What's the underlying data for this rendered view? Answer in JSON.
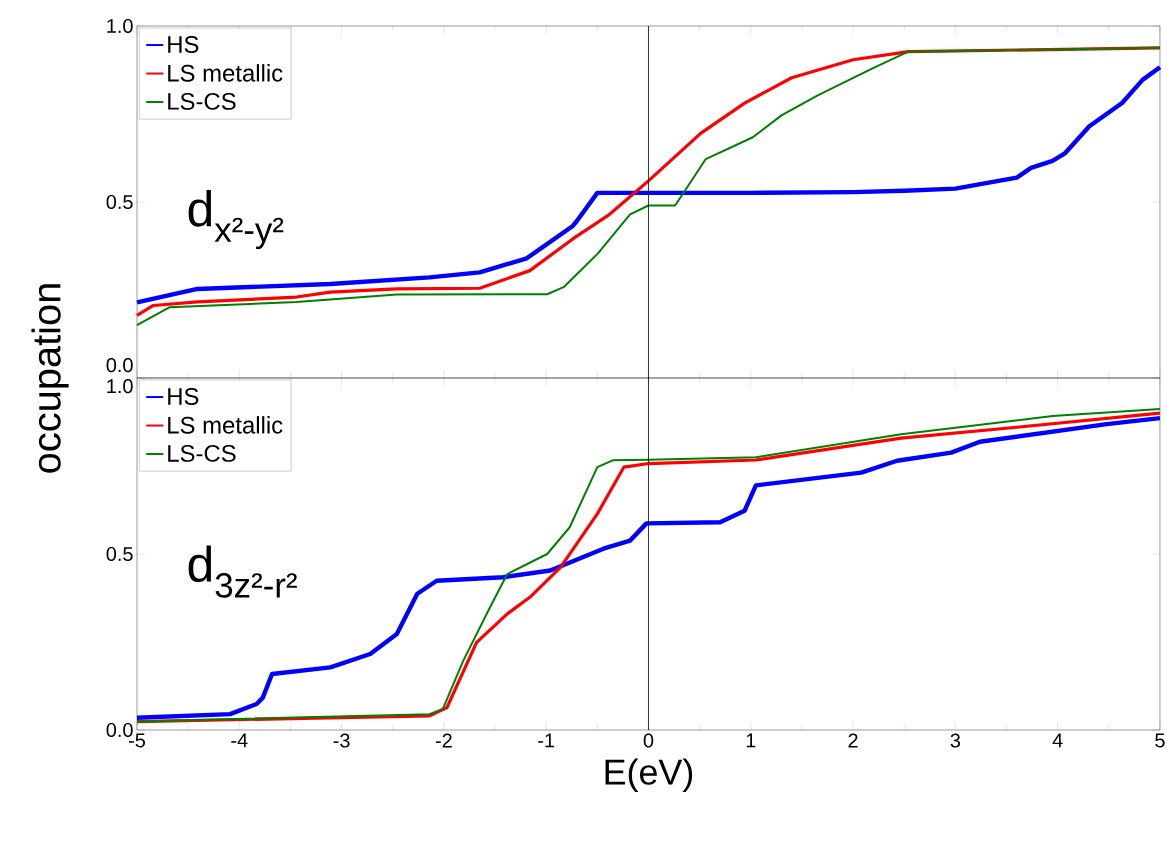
{
  "chart_data": [
    {
      "type": "line",
      "annotations": [
        "d$_{x²-y²}$"
      ],
      "xlim": [
        -5,
        5
      ],
      "xticks": [
        -5,
        -4,
        -3,
        -2,
        -1,
        0,
        1,
        2,
        3,
        4,
        5
      ],
      "ylim": [
        0,
        1
      ],
      "yticks": [
        {
          "value": 0,
          "label": "0.0"
        },
        {
          "value": 0.5,
          "label": "0.5"
        },
        {
          "value": 1,
          "label": "1.0"
        }
      ],
      "tick_labels": "y",
      "legend": "top left",
      "grid": false,
      "marker": "none",
      "line_style": "solid",
      "ref_lines": [
        {
          "axis": "x",
          "value": 0,
          "color": "#000000"
        }
      ],
      "series": [
        {
          "name": "HS",
          "color": "#0000ff",
          "x": [
            -5,
            -4.41,
            -3.11,
            -2.14,
            -1.65,
            -1.19,
            -0.74,
            -0.7,
            -0.5,
            0,
            1,
            2,
            2.5,
            3.0,
            3.6,
            3.74,
            3.95,
            4.07,
            4.31,
            4.63,
            4.83,
            5
          ],
          "values": [
            0.215,
            0.253,
            0.267,
            0.286,
            0.3,
            0.34,
            0.432,
            0.446,
            0.526,
            0.526,
            0.526,
            0.528,
            0.532,
            0.538,
            0.569,
            0.597,
            0.617,
            0.638,
            0.715,
            0.781,
            0.847,
            0.883
          ]
        },
        {
          "name": "LS metallic",
          "color": "#ff0000",
          "x": [
            -5,
            -4.84,
            -4.41,
            -3.44,
            -3.11,
            -2.46,
            -1.65,
            -1.16,
            -0.74,
            -0.38,
            0,
            0.51,
            0.94,
            1.4,
            2.0,
            2.54,
            5
          ],
          "values": [
            0.178,
            0.206,
            0.216,
            0.23,
            0.244,
            0.253,
            0.255,
            0.305,
            0.395,
            0.465,
            0.56,
            0.695,
            0.781,
            0.853,
            0.904,
            0.927,
            0.938
          ]
        },
        {
          "name": "LS-CS",
          "color": "#008000",
          "x": [
            -5,
            -4.68,
            -3.44,
            -2.46,
            -0.99,
            -0.83,
            -0.5,
            -0.18,
            0,
            0.26,
            0.34,
            0.56,
            1.02,
            1.3,
            1.65,
            2.18,
            2.54,
            5
          ],
          "values": [
            0.15,
            0.201,
            0.216,
            0.237,
            0.238,
            0.258,
            0.352,
            0.465,
            0.49,
            0.49,
            0.525,
            0.622,
            0.684,
            0.746,
            0.802,
            0.878,
            0.927,
            0.938
          ]
        }
      ]
    },
    {
      "type": "line",
      "annotations": [
        "d$_{3z²-r²}$"
      ],
      "xlabel": "E(eV)",
      "ylabel": "occupation",
      "xlim": [
        -5,
        5
      ],
      "xticks": [
        -5,
        -4,
        -3,
        -2,
        -1,
        0,
        1,
        2,
        3,
        4,
        5
      ],
      "ylim": [
        0,
        1
      ],
      "yticks": [
        {
          "value": 0,
          "label": "0.0"
        },
        {
          "value": 0.5,
          "label": "0.5"
        },
        {
          "value": 1,
          "label": "1.0"
        }
      ],
      "legend": "top left",
      "grid": false,
      "marker": "none",
      "line_style": "solid",
      "ref_lines": [
        {
          "axis": "x",
          "value": 0,
          "color": "#000000"
        }
      ],
      "series": [
        {
          "name": "HS",
          "color": "#0000ff",
          "x": [
            -5,
            -4.09,
            -3.83,
            -3.77,
            -3.68,
            -3.11,
            -2.72,
            -2.46,
            -2.26,
            -2.07,
            -1.42,
            -0.96,
            -0.44,
            -0.18,
            -0.02,
            0.7,
            0.94,
            1.05,
            2.08,
            2.43,
            2.96,
            3.24,
            4.48,
            5
          ],
          "values": [
            0.035,
            0.045,
            0.074,
            0.092,
            0.159,
            0.178,
            0.216,
            0.273,
            0.387,
            0.424,
            0.434,
            0.453,
            0.515,
            0.538,
            0.587,
            0.59,
            0.623,
            0.695,
            0.731,
            0.765,
            0.788,
            0.819,
            0.869,
            0.886
          ]
        },
        {
          "name": "LS metallic",
          "color": "#ff0000",
          "x": [
            -5,
            -2.14,
            -1.97,
            -1.68,
            -1.38,
            -1.16,
            -0.86,
            -0.5,
            -0.24,
            0,
            1.05,
            2.47,
            3.6,
            5
          ],
          "values": [
            0.024,
            0.04,
            0.064,
            0.249,
            0.33,
            0.377,
            0.462,
            0.614,
            0.747,
            0.757,
            0.767,
            0.829,
            0.86,
            0.9
          ]
        },
        {
          "name": "LS-CS",
          "color": "#008000",
          "x": [
            -5,
            -2.14,
            -2.01,
            -1.81,
            -1.55,
            -1.38,
            -0.99,
            -0.77,
            -0.5,
            -0.35,
            0,
            1.05,
            2.47,
            3.95,
            5
          ],
          "values": [
            0.024,
            0.045,
            0.06,
            0.197,
            0.348,
            0.443,
            0.5,
            0.576,
            0.747,
            0.766,
            0.768,
            0.775,
            0.84,
            0.892,
            0.912
          ]
        }
      ]
    }
  ]
}
